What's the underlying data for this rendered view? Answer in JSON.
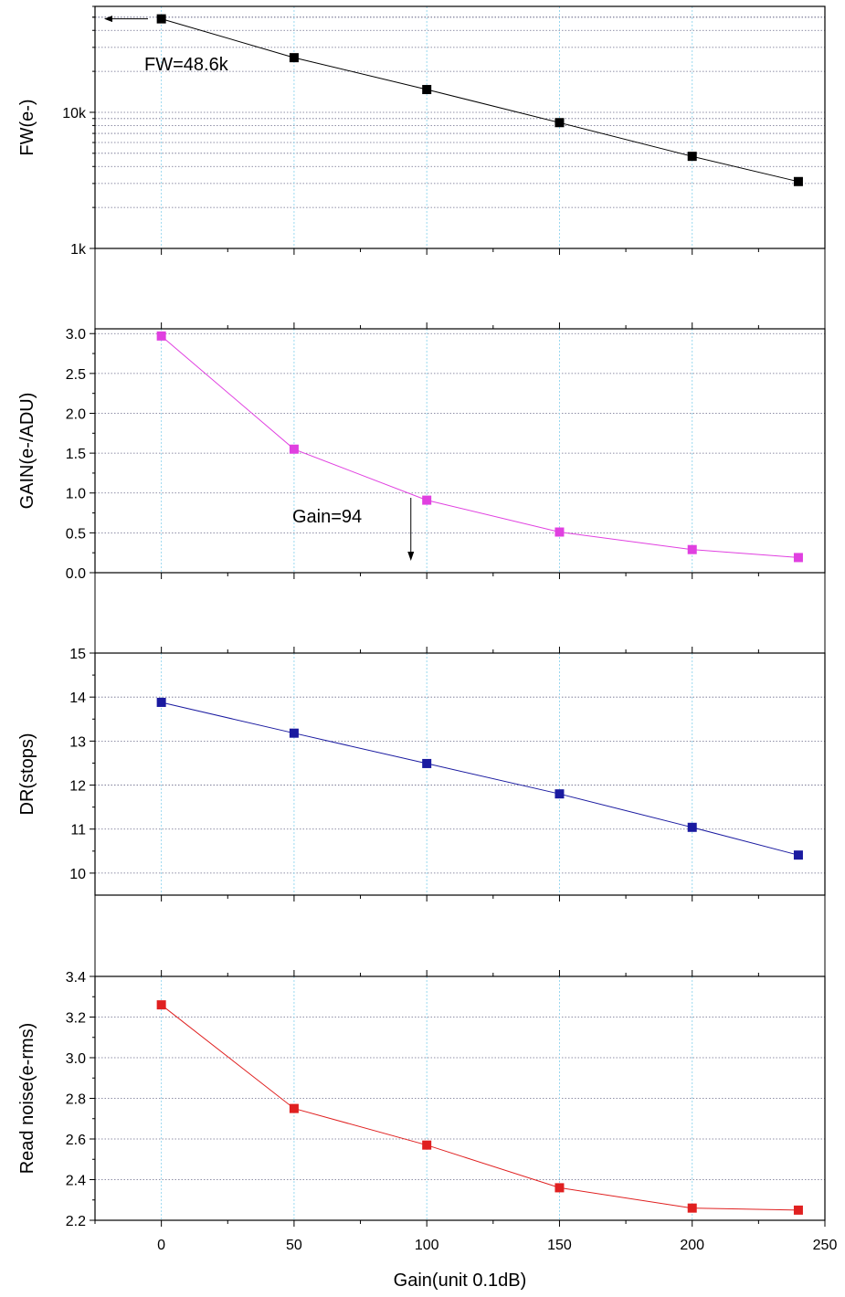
{
  "chart_data": [
    {
      "type": "line",
      "id": "fw",
      "ylabel": "FW(e-)",
      "yscale": "log",
      "ylim": [
        1000,
        60000
      ],
      "yticks": [
        1000,
        10000
      ],
      "ytick_labels": [
        "1k",
        "10k"
      ],
      "x": [
        0,
        50,
        100,
        150,
        200,
        240
      ],
      "series": [
        {
          "values": [
            48600,
            25200,
            14700,
            8400,
            4750,
            3100
          ],
          "color": "#000000"
        }
      ],
      "annotations": [
        {
          "text": "FW=48.6k"
        }
      ],
      "grid": true
    },
    {
      "type": "line",
      "id": "gain",
      "ylabel": "GAIN(e-/ADU)",
      "ylim": [
        0,
        3.06
      ],
      "yticks": [
        0,
        0.5,
        1,
        1.5,
        2,
        2.5,
        3
      ],
      "ytick_labels": [
        "0.0",
        "0.5",
        "1.0",
        "1.5",
        "2.0",
        "2.5",
        "3.0"
      ],
      "x": [
        0,
        50,
        100,
        150,
        200,
        240
      ],
      "series": [
        {
          "values": [
            2.97,
            1.55,
            0.91,
            0.51,
            0.29,
            0.19
          ],
          "color": "#e040e0"
        }
      ],
      "annotations": [
        {
          "text": "Gain=94",
          "x": 94
        }
      ],
      "grid": true
    },
    {
      "type": "line",
      "id": "dr",
      "ylabel": "DR(stops)",
      "ylim": [
        9.5,
        15
      ],
      "yticks": [
        10,
        11,
        12,
        13,
        14,
        15
      ],
      "ytick_labels": [
        "10",
        "11",
        "12",
        "13",
        "14",
        "15"
      ],
      "x": [
        0,
        50,
        100,
        150,
        200,
        240
      ],
      "series": [
        {
          "values": [
            13.88,
            13.18,
            12.49,
            11.8,
            11.04,
            10.41
          ],
          "color": "#1a1aa0"
        }
      ],
      "grid": true
    },
    {
      "type": "line",
      "id": "rn",
      "ylabel": "Read noise(e-rms)",
      "xlabel": "Gain(unit 0.1dB)",
      "xlim": [
        -25,
        250
      ],
      "xticks": [
        0,
        50,
        100,
        150,
        200,
        250
      ],
      "xtick_labels": [
        "0",
        "50",
        "100",
        "150",
        "200",
        "250"
      ],
      "ylim": [
        2.2,
        3.4
      ],
      "yticks": [
        2.2,
        2.4,
        2.6,
        2.8,
        3.0,
        3.2,
        3.4
      ],
      "ytick_labels": [
        "2.2",
        "2.4",
        "2.6",
        "2.8",
        "3.0",
        "3.2",
        "3.4"
      ],
      "x": [
        0,
        50,
        100,
        150,
        200,
        240
      ],
      "series": [
        {
          "values": [
            3.26,
            2.75,
            2.57,
            2.36,
            2.26,
            2.25
          ],
          "color": "#e02020"
        }
      ],
      "grid": true
    }
  ]
}
